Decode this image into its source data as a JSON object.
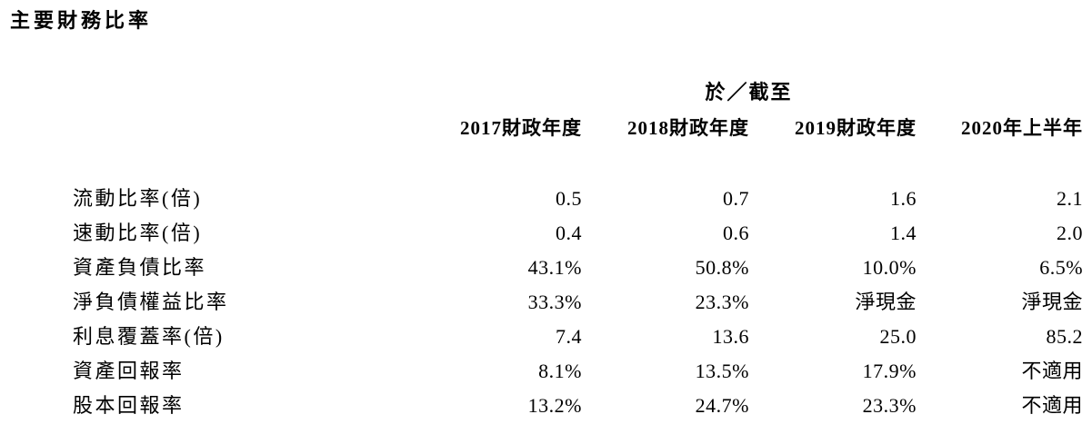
{
  "page": {
    "title": "主要財務比率"
  },
  "table": {
    "group_header": "於／截至",
    "columns": [
      "2017財政年度",
      "2018財政年度",
      "2019財政年度",
      "2020年上半年"
    ],
    "rows": [
      {
        "label": "流動比率(倍)",
        "values": [
          "0.5",
          "0.7",
          "1.6",
          "2.1"
        ]
      },
      {
        "label": "速動比率(倍)",
        "values": [
          "0.4",
          "0.6",
          "1.4",
          "2.0"
        ]
      },
      {
        "label": "資產負債比率",
        "values": [
          "43.1%",
          "50.8%",
          "10.0%",
          "6.5%"
        ]
      },
      {
        "label": "淨負債權益比率",
        "values": [
          "33.3%",
          "23.3%",
          "淨現金",
          "淨現金"
        ]
      },
      {
        "label": "利息覆蓋率(倍)",
        "values": [
          "7.4",
          "13.6",
          "25.0",
          "85.2"
        ]
      },
      {
        "label": "資產回報率",
        "values": [
          "8.1%",
          "13.5%",
          "17.9%",
          "不適用"
        ]
      },
      {
        "label": "股本回報率",
        "values": [
          "13.2%",
          "24.7%",
          "23.3%",
          "不適用"
        ]
      }
    ],
    "colors": {
      "text": "#000000",
      "background": "#ffffff"
    }
  }
}
